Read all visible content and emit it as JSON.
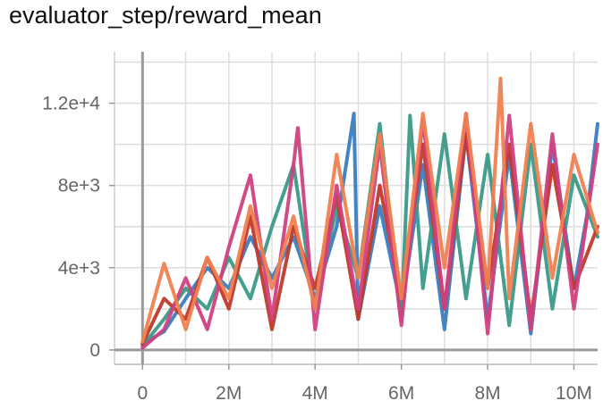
{
  "chart_data": {
    "type": "line",
    "title": "evaluator_step/reward_mean",
    "xlabel": "",
    "ylabel": "",
    "xlim": [
      -650000,
      10550000
    ],
    "ylim": [
      -700,
      14500
    ],
    "x_ticks": [
      0,
      2000000,
      4000000,
      6000000,
      8000000,
      10000000
    ],
    "x_tick_labels": [
      "0",
      "2M",
      "4M",
      "6M",
      "8M",
      "10M"
    ],
    "y_ticks": [
      0,
      4000,
      8000,
      12000
    ],
    "y_tick_labels": [
      "0",
      "4e+3",
      "8e+3",
      "1.2e+4"
    ],
    "grid": true,
    "legend": "none",
    "series": [
      {
        "color": "#3a7dc0",
        "x": [
          0,
          500000,
          1000000,
          1500000,
          2000000,
          2500000,
          3000000,
          3500000,
          4000000,
          4500000,
          4900000,
          5000000,
          5500000,
          6000000,
          6500000,
          7000000,
          7500000,
          8000000,
          8500000,
          9000000,
          9500000,
          10000000,
          10300000,
          10550000
        ],
        "y": [
          300,
          900,
          2500,
          4000,
          3000,
          5500,
          3500,
          5500,
          2500,
          6000,
          11500,
          1500,
          7000,
          2000,
          9000,
          1000,
          10500,
          1500,
          9500,
          800,
          10000,
          3000,
          6500,
          11000
        ]
      },
      {
        "color": "#3a9a88",
        "x": [
          0,
          500000,
          1000000,
          1500000,
          2000000,
          2500000,
          3000000,
          3500000,
          4000000,
          4500000,
          5000000,
          5500000,
          6000000,
          6200000,
          6500000,
          7000000,
          7500000,
          8000000,
          8500000,
          9000000,
          9500000,
          10000000,
          10550000
        ],
        "y": [
          200,
          1500,
          3000,
          2000,
          4500,
          2500,
          6000,
          9000,
          2000,
          7000,
          3500,
          11000,
          1500,
          11400,
          3000,
          10500,
          2500,
          9500,
          1200,
          10000,
          2000,
          8500,
          5500
        ]
      },
      {
        "color": "#c03a2a",
        "x": [
          0,
          500000,
          1000000,
          1500000,
          2000000,
          2500000,
          3000000,
          3500000,
          4000000,
          4500000,
          5000000,
          5500000,
          6000000,
          6500000,
          7000000,
          7500000,
          8000000,
          8500000,
          9000000,
          9500000,
          10000000,
          10550000
        ],
        "y": [
          300,
          2500,
          1500,
          4500,
          2000,
          6500,
          1000,
          6000,
          3000,
          7500,
          1500,
          8000,
          2500,
          10000,
          2000,
          10500,
          3000,
          10000,
          1500,
          9000,
          3000,
          6000
        ]
      },
      {
        "color": "#d04080",
        "x": [
          0,
          500000,
          1000000,
          1500000,
          2000000,
          2500000,
          3000000,
          3500000,
          3600000,
          4000000,
          4500000,
          5000000,
          5500000,
          6000000,
          6500000,
          7000000,
          7500000,
          8000000,
          8500000,
          9000000,
          9500000,
          10000000,
          10550000
        ],
        "y": [
          100,
          1000,
          3500,
          1000,
          5000,
          8500,
          1500,
          9000,
          10800,
          1000,
          8000,
          2000,
          10000,
          1200,
          11200,
          2000,
          11500,
          800,
          11400,
          1000,
          10500,
          2000,
          10000
        ]
      },
      {
        "color": "#f08050",
        "x": [
          0,
          500000,
          1000000,
          1500000,
          2000000,
          2500000,
          3000000,
          3500000,
          4000000,
          4500000,
          5000000,
          5500000,
          6000000,
          6500000,
          7000000,
          7500000,
          8000000,
          8300000,
          8500000,
          9000000,
          9500000,
          10000000,
          10550000
        ],
        "y": [
          400,
          4200,
          1000,
          4500,
          2500,
          7000,
          3000,
          6500,
          2000,
          9500,
          3500,
          10500,
          2500,
          11500,
          4000,
          11500,
          3000,
          13200,
          2500,
          11000,
          3500,
          9500,
          5700
        ]
      }
    ]
  }
}
